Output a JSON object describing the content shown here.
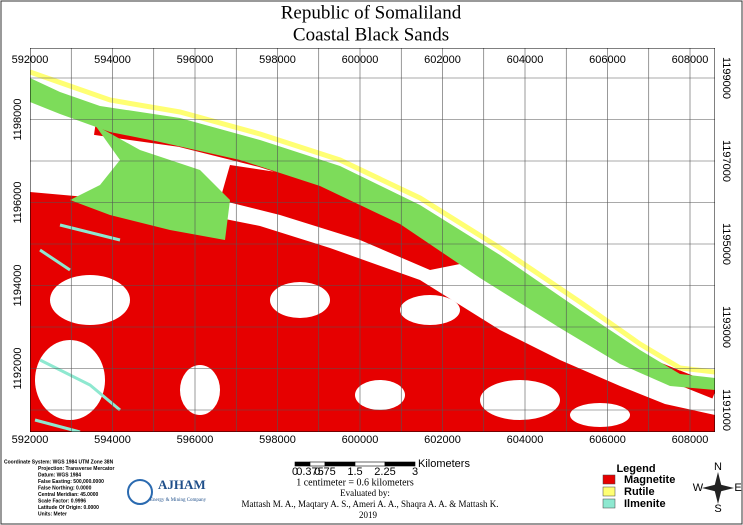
{
  "title": [
    "Republic of Somaliland",
    "Coastal Black Sands"
  ],
  "grid": {
    "x_top": [
      592000,
      594000,
      596000,
      598000,
      600000,
      602000,
      604000,
      606000,
      608000
    ],
    "x_bottom": [
      592000,
      594000,
      596000,
      598000,
      600000,
      602000,
      604000,
      606000,
      608000
    ],
    "y_left": [
      1198000,
      1196000,
      1194000,
      1192000
    ],
    "y_right": [
      1199000,
      1197000,
      1195000,
      1193000,
      1191000
    ]
  },
  "projection": [
    "Coordinate System: WGS 1984 UTM Zone 38N",
    "Projection: Transverse Mercator",
    "Datum: WGS 1984",
    "False Easting: 500,000.0000",
    "False Northing: 0.0000",
    "Central Meridian: 45.0000",
    "Scale Factor: 0.9996",
    "Latitude Of Origin: 0.0000",
    "Units: Meter"
  ],
  "logo": {
    "name": "AJHAM",
    "subtitle": "Energy & Mining Company"
  },
  "scale_bar": {
    "ticks": [
      0,
      0.375,
      0.75,
      1.5,
      2.25,
      3
    ],
    "unit": "Kilometers",
    "ratio": "1 centimeter = 0.6 kilometers"
  },
  "credits": {
    "heading": "Evaluated by:",
    "authors": "Mattash M. A., Maqtary A. S., Ameri A. A., Shaqra A. A. & Mattash K.",
    "year": "2019"
  },
  "legend": {
    "title": "Legend",
    "items": [
      {
        "label": "Magnetite",
        "color": "#e60000"
      },
      {
        "label": "Rutile",
        "color": "#ffff73"
      },
      {
        "label": "Ilmenite",
        "color": "#8ee8d0"
      }
    ]
  },
  "compass": [
    "N",
    "E",
    "S",
    "W"
  ]
}
